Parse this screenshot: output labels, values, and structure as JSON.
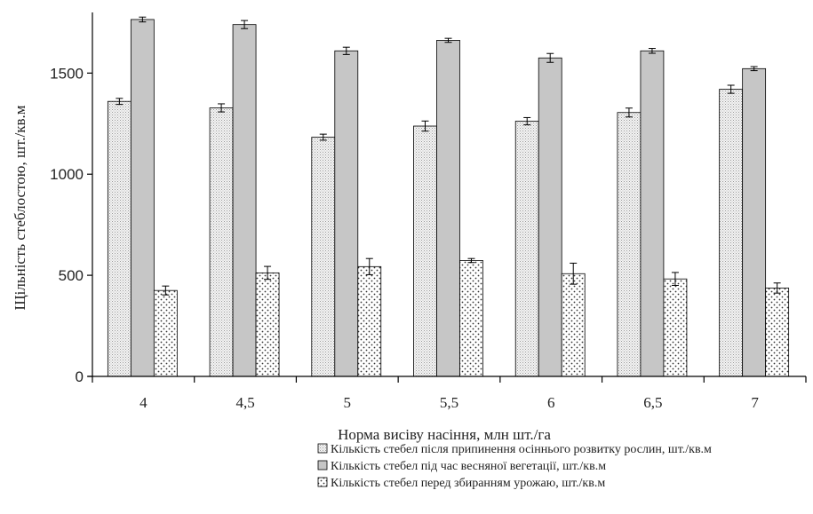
{
  "chart_data": {
    "type": "bar",
    "title": "",
    "xlabel": "Норма висіву насіння, млн шт./га",
    "ylabel": "Щільність стеблостою, шт./кв.м",
    "ylim": [
      0,
      1800
    ],
    "yticks": [
      0,
      500,
      1000,
      1500
    ],
    "categories": [
      "4",
      "4,5",
      "5",
      "5,5",
      "6",
      "6,5",
      "7"
    ],
    "series": [
      {
        "name": "Кількість стебел після припинення осіннього розвитку рослин, шт./кв.м",
        "pattern": "fine-dots",
        "values": [
          1360,
          1328,
          1183,
          1238,
          1262,
          1305,
          1420
        ],
        "errors": [
          15,
          20,
          15,
          25,
          18,
          22,
          20
        ]
      },
      {
        "name": "Кількість стебел під час весняної вегетації, шт./кв.м",
        "pattern": "solid-gray",
        "values": [
          1765,
          1740,
          1610,
          1662,
          1575,
          1610,
          1522
        ],
        "errors": [
          12,
          20,
          18,
          10,
          22,
          12,
          10
        ]
      },
      {
        "name": "Кількість стебел перед збиранням урожаю, шт./кв.м",
        "pattern": "coarse-dots",
        "values": [
          425,
          512,
          543,
          573,
          508,
          482,
          437
        ],
        "errors": [
          22,
          32,
          40,
          10,
          52,
          32,
          25
        ]
      }
    ],
    "grid": false,
    "legend": "bottom",
    "colors": {
      "axis": "#000000",
      "solid_bar": "#c6c6c6",
      "light_bar": "#f3f3f3",
      "dots_bar": "#ffffff"
    }
  }
}
